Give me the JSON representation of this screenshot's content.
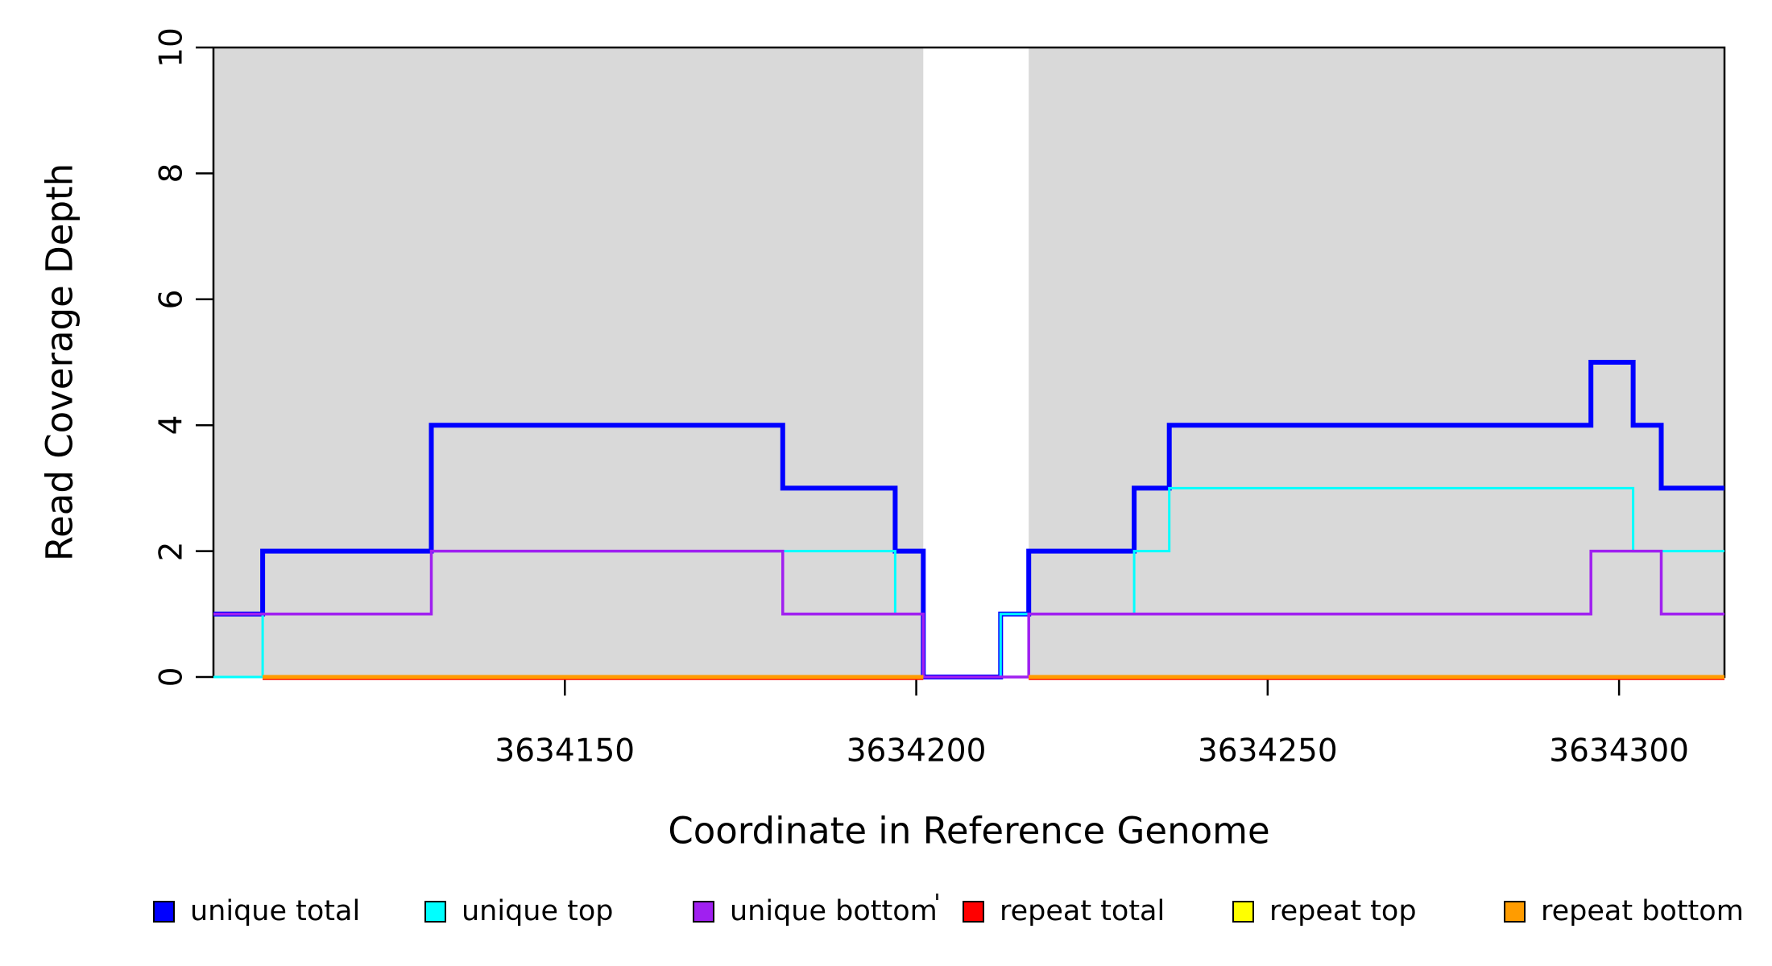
{
  "chart_data": {
    "type": "line",
    "subtype": "step-coverage",
    "title": "",
    "xlabel": "Coordinate in Reference Genome",
    "ylabel": "Read Coverage Depth",
    "xlim": [
      3634100,
      3634315
    ],
    "ylim": [
      0,
      10
    ],
    "x_ticks": [
      3634150,
      3634200,
      3634250,
      3634300
    ],
    "y_ticks": [
      0,
      2,
      4,
      6,
      8,
      10
    ],
    "grid": "off",
    "legend_position": "bottom",
    "background_shading": {
      "color": "#D9D9D9",
      "regions": [
        [
          3634100,
          3634201
        ],
        [
          3634216,
          3634315
        ]
      ]
    },
    "unshaded_gap": [
      3634201,
      3634216
    ],
    "series": [
      {
        "name": "unique total",
        "color": "#0000FF",
        "line_width": 6,
        "paths": [
          {
            "steps": [
              [
                3634100,
                1
              ],
              [
                3634107,
                2
              ],
              [
                3634131,
                4
              ],
              [
                3634181,
                3
              ],
              [
                3634197,
                2
              ],
              [
                3634201,
                0
              ],
              [
                3634212,
                1
              ],
              [
                3634216,
                2
              ],
              [
                3634231,
                3
              ],
              [
                3634236,
                4
              ],
              [
                3634296,
                5
              ],
              [
                3634302,
                4
              ],
              [
                3634306,
                3
              ]
            ],
            "end": 3634315
          }
        ]
      },
      {
        "name": "unique top",
        "color": "#00FFFF",
        "line_width": 3,
        "paths": [
          {
            "steps": [
              [
                3634100,
                0
              ],
              [
                3634107,
                1
              ],
              [
                3634131,
                2
              ],
              [
                3634197,
                1
              ],
              [
                3634201,
                0
              ],
              [
                3634212,
                1
              ],
              [
                3634231,
                2
              ],
              [
                3634236,
                3
              ],
              [
                3634302,
                2
              ]
            ],
            "end": 3634315
          }
        ]
      },
      {
        "name": "unique bottom",
        "color": "#A020F0",
        "line_width": 3.5,
        "paths": [
          {
            "steps": [
              [
                3634100,
                1
              ],
              [
                3634131,
                2
              ],
              [
                3634181,
                1
              ],
              [
                3634201,
                0
              ],
              [
                3634216,
                1
              ],
              [
                3634296,
                2
              ],
              [
                3634306,
                1
              ]
            ],
            "end": 3634315
          }
        ]
      },
      {
        "name": "repeat total",
        "color": "#FF0000",
        "line_width": 3.5,
        "paths": [
          {
            "steps": [
              [
                3634107,
                0
              ]
            ],
            "end": 3634201
          },
          {
            "steps": [
              [
                3634216,
                0
              ]
            ],
            "end": 3634315
          }
        ]
      },
      {
        "name": "repeat top",
        "color": "#FFFF00",
        "line_width": 4,
        "paths": [
          {
            "steps": [
              [
                3634107,
                0
              ]
            ],
            "end": 3634201
          },
          {
            "steps": [
              [
                3634216,
                0
              ]
            ],
            "end": 3634315
          }
        ]
      },
      {
        "name": "repeat bottom",
        "color": "#FF9C00",
        "line_width": 5,
        "paths": [
          {
            "steps": [
              [
                3634107,
                0
              ]
            ],
            "end": 3634201
          },
          {
            "steps": [
              [
                3634216,
                0
              ]
            ],
            "end": 3634315
          }
        ]
      }
    ],
    "legend": {
      "items": [
        {
          "label": "unique total",
          "color": "#0000FF"
        },
        {
          "label": "unique top",
          "color": "#00FFFF"
        },
        {
          "label": "unique bottom",
          "color": "#A020F0"
        },
        {
          "label": "repeat total",
          "color": "#FF0000"
        },
        {
          "label": "repeat top",
          "color": "#FFFF00"
        },
        {
          "label": "repeat bottom",
          "color": "#FF9C00"
        }
      ]
    },
    "colors": {
      "axis": "#000000",
      "shading": "#D9D9D9",
      "background": "#FFFFFF"
    }
  }
}
